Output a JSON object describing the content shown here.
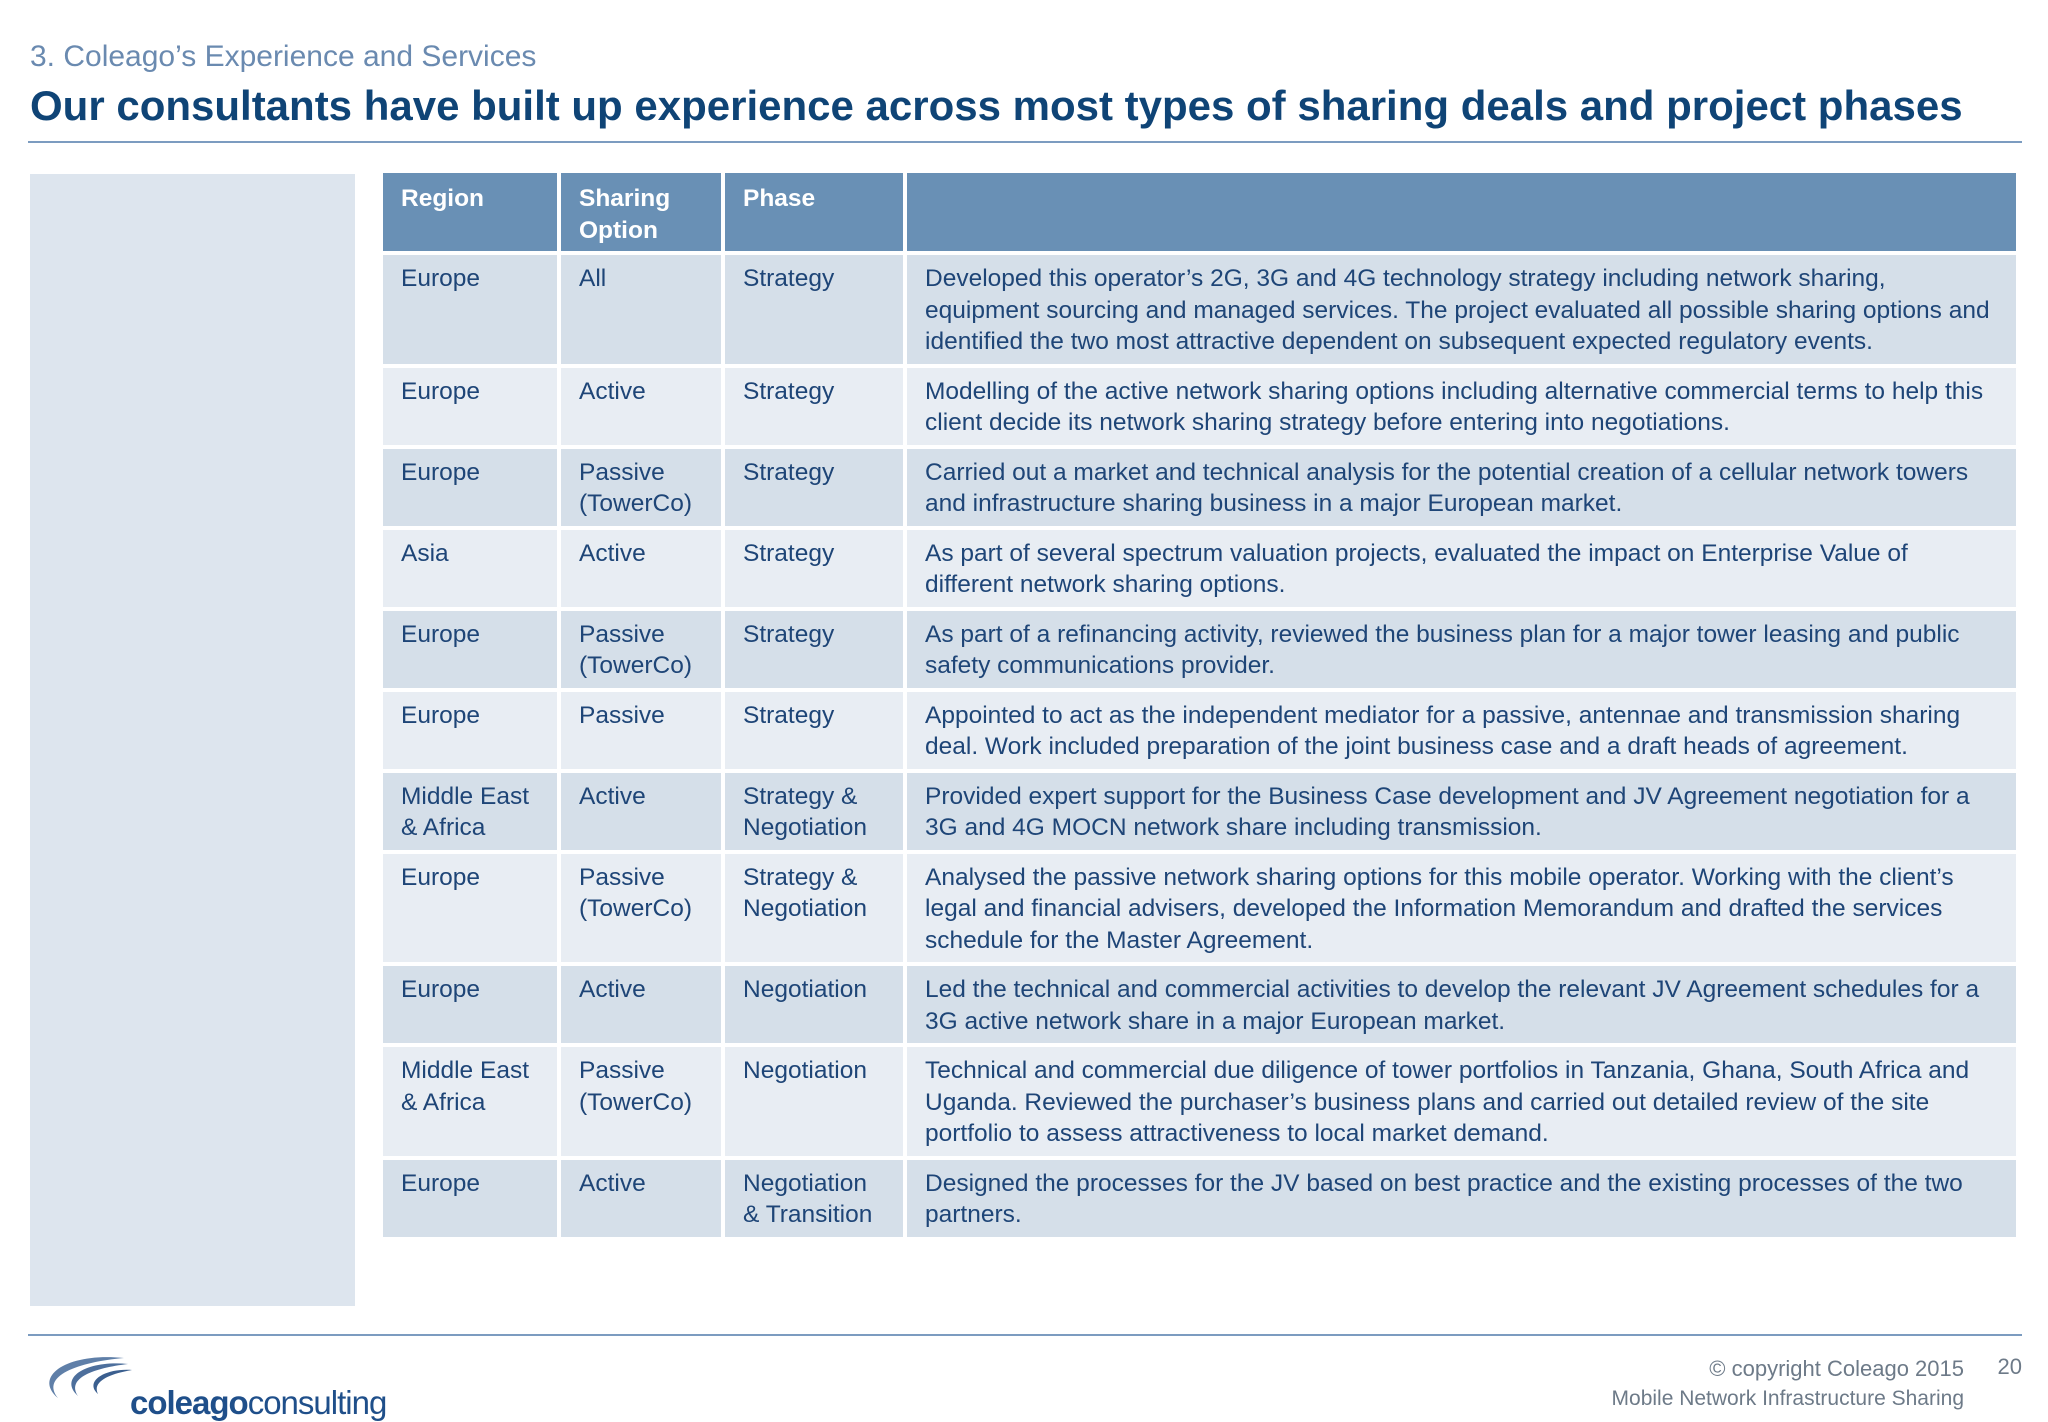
{
  "header": {
    "section": "3. Coleago’s Experience and Services",
    "title": "Our consultants have built up experience across most types of sharing deals and project phases"
  },
  "table": {
    "columns": [
      "Region",
      "Sharing Option",
      "Phase",
      ""
    ],
    "rows": [
      {
        "region": "Europe",
        "option": "All",
        "phase": "Strategy",
        "description": "Developed this operator’s 2G, 3G and 4G technology strategy including network sharing, equipment sourcing and managed services. The project evaluated all possible sharing options and identified the two most attractive dependent on subsequent expected regulatory events."
      },
      {
        "region": "Europe",
        "option": "Active",
        "phase": "Strategy",
        "description": "Modelling of the active network sharing options including alternative commercial terms to help this client decide its network sharing strategy before entering into negotiations."
      },
      {
        "region": "Europe",
        "option": "Passive (TowerCo)",
        "phase": "Strategy",
        "description": "Carried out a market and technical analysis for the potential creation of a cellular network towers and infrastructure sharing business in a major European market."
      },
      {
        "region": "Asia",
        "option": "Active",
        "phase": "Strategy",
        "description": "As part of several spectrum valuation projects, evaluated the impact on Enterprise Value of different network sharing options."
      },
      {
        "region": "Europe",
        "option": "Passive (TowerCo)",
        "phase": "Strategy",
        "description": "As part of a refinancing activity, reviewed the business plan for a major tower leasing and public safety communications provider."
      },
      {
        "region": "Europe",
        "option": "Passive",
        "phase": "Strategy",
        "description": "Appointed to act as the independent mediator for a passive, antennae and transmission sharing deal. Work included preparation of the joint business case and a draft heads of agreement."
      },
      {
        "region": "Middle East & Africa",
        "option": "Active",
        "phase": "Strategy & Negotiation",
        "description": "Provided expert support for the Business Case development and JV Agreement negotiation for a 3G and 4G MOCN network share including transmission."
      },
      {
        "region": "Europe",
        "option": "Passive (TowerCo)",
        "phase": "Strategy & Negotiation",
        "description": "Analysed the passive network sharing options for this mobile operator. Working with the client’s legal and financial advisers, developed the Information Memorandum and drafted the services schedule for the Master Agreement."
      },
      {
        "region": "Europe",
        "option": "Active",
        "phase": "Negotiation",
        "description": "Led the technical and commercial activities to develop the relevant JV Agreement schedules for a 3G active network share in a major European market."
      },
      {
        "region": "Middle East & Africa",
        "option": "Passive (TowerCo)",
        "phase": "Negotiation",
        "description": "Technical and commercial due diligence of tower portfolios in Tanzania, Ghana, South Africa and Uganda. Reviewed the purchaser’s business plans and carried out detailed review of the site portfolio to assess attractiveness to local market demand."
      },
      {
        "region": "Europe",
        "option": "Active",
        "phase": "Negotiation & Transition",
        "description": "Designed the processes for the JV based on best practice and the existing processes of the two partners."
      }
    ]
  },
  "footer": {
    "logo_bold": "coleago",
    "logo_rest": "consulting",
    "copyright": "© copyright Coleago 2015",
    "page_number": "20",
    "document_title": "Mobile Network Infrastructure Sharing"
  },
  "colors": {
    "title": "#0f4476",
    "header_fill": "#6990b5",
    "row_odd": "#d5dfe9",
    "row_even": "#e8edf3"
  }
}
